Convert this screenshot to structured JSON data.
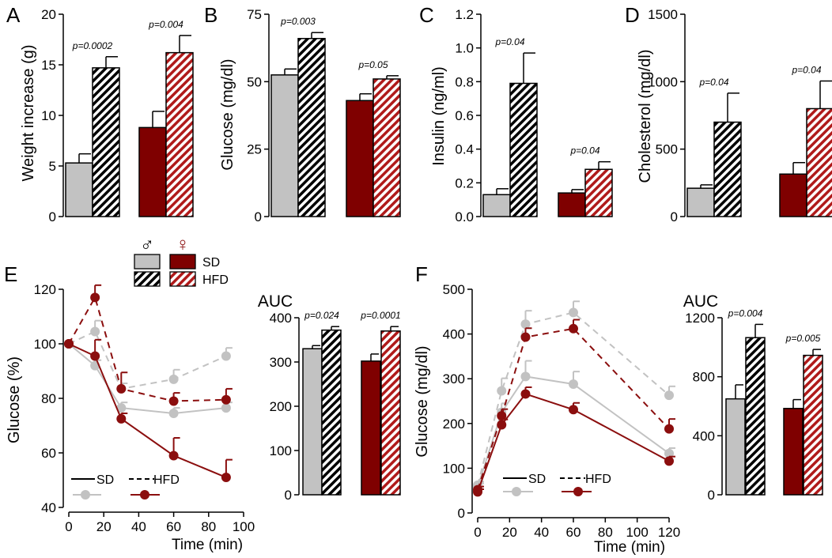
{
  "colors": {
    "sd_male": "#c2c2c2",
    "sd_female": "#7f0000",
    "hfd_male": "#000000",
    "hfd_female": "#b01a1a",
    "line_male": "#c2c2c2",
    "line_female": "#8b0e0e",
    "axis": "#000000"
  },
  "legend": {
    "male_symbol": "♂",
    "female_symbol": "♀",
    "sd_label": "SD",
    "hfd_label": "HFD"
  },
  "chart_data": [
    {
      "panel": "A",
      "type": "bar",
      "ylabel": "Weight increase (g)",
      "ylim": [
        0,
        20
      ],
      "yticks": [
        0,
        5,
        10,
        15,
        20
      ],
      "categories": [
        "male",
        "female"
      ],
      "series": [
        {
          "name": "SD",
          "values": [
            5.3,
            8.8
          ],
          "errors": [
            0.9,
            1.6
          ]
        },
        {
          "name": "HFD",
          "values": [
            14.7,
            16.2
          ],
          "errors": [
            1.1,
            1.7
          ]
        }
      ],
      "pvalues": [
        "p=0.0002",
        "p=0.004"
      ]
    },
    {
      "panel": "B",
      "type": "bar",
      "ylabel": "Glucose (mg/dl)",
      "ylim": [
        0,
        75
      ],
      "yticks": [
        0,
        25,
        50,
        75
      ],
      "categories": [
        "male",
        "female"
      ],
      "series": [
        {
          "name": "SD",
          "values": [
            52.5,
            43.0
          ],
          "errors": [
            2.2,
            2.5
          ]
        },
        {
          "name": "HFD",
          "values": [
            66.0,
            51.0
          ],
          "errors": [
            2.2,
            1.2
          ]
        }
      ],
      "pvalues": [
        "p=0.003",
        "p=0.05"
      ]
    },
    {
      "panel": "C",
      "type": "bar",
      "ylabel": "Insulin (ng/ml)",
      "ylim": [
        0,
        1.2
      ],
      "yticks": [
        "0.0",
        "0.2",
        "0.4",
        "0.6",
        "0.8",
        "1.0",
        "1.2"
      ],
      "categories": [
        "male",
        "female"
      ],
      "series": [
        {
          "name": "SD",
          "values": [
            0.13,
            0.14
          ],
          "errors": [
            0.035,
            0.02
          ]
        },
        {
          "name": "HFD",
          "values": [
            0.79,
            0.28
          ],
          "errors": [
            0.18,
            0.045
          ]
        }
      ],
      "pvalues": [
        "p=0.04",
        "p=0.04"
      ]
    },
    {
      "panel": "D",
      "type": "bar",
      "ylabel": "Cholesterol (mg/dl)",
      "ylim": [
        0,
        1500
      ],
      "yticks": [
        0,
        500,
        1000,
        1500
      ],
      "categories": [
        "male",
        "female"
      ],
      "series": [
        {
          "name": "SD",
          "values": [
            210,
            315
          ],
          "errors": [
            25,
            85
          ]
        },
        {
          "name": "HFD",
          "values": [
            700,
            800
          ],
          "errors": [
            215,
            205
          ]
        }
      ],
      "pvalues": [
        "p=0.04",
        "p=0.04"
      ]
    },
    {
      "panel": "E",
      "type": "line",
      "ylabel": "Glucose (%)",
      "xlabel": "Time (min)",
      "xlim": [
        0,
        100
      ],
      "ylim": [
        40,
        120
      ],
      "xticks": [
        0,
        20,
        40,
        60,
        80,
        100
      ],
      "yticks": [
        40,
        60,
        80,
        100,
        120
      ],
      "x": [
        0,
        15,
        30,
        60,
        90
      ],
      "series": [
        {
          "name": "male SD",
          "values": [
            100,
            92,
            76.5,
            74.5,
            76.5
          ],
          "errors": [
            0,
            2,
            2,
            2,
            2
          ]
        },
        {
          "name": "male HFD",
          "values": [
            100,
            104.5,
            83.5,
            87,
            95.5
          ],
          "errors": [
            0,
            4,
            2,
            3.5,
            3
          ]
        },
        {
          "name": "female SD",
          "values": [
            100,
            95.5,
            72.5,
            59,
            51
          ],
          "errors": [
            0,
            6,
            2,
            6.5,
            6.5
          ]
        },
        {
          "name": "female HFD",
          "values": [
            100,
            117,
            83.5,
            79,
            79.5
          ],
          "errors": [
            0,
            4.5,
            6,
            3,
            4
          ]
        }
      ],
      "legend_sd": "SD",
      "legend_hfd": "HFD"
    },
    {
      "panel": "E-AUC",
      "type": "bar",
      "title": "AUC",
      "ylim": [
        0,
        400
      ],
      "yticks": [
        0,
        100,
        200,
        300,
        400
      ],
      "categories": [
        "male",
        "female"
      ],
      "series": [
        {
          "name": "SD",
          "values": [
            330,
            302
          ],
          "errors": [
            7,
            16
          ]
        },
        {
          "name": "HFD",
          "values": [
            372,
            370
          ],
          "errors": [
            8,
            10
          ]
        }
      ],
      "pvalues": [
        "p=0.024",
        "p=0.0001"
      ]
    },
    {
      "panel": "F",
      "type": "line",
      "ylabel": "Glucose (mg/dl)",
      "xlabel": "Time (min)",
      "xlim": [
        0,
        120
      ],
      "ylim": [
        0,
        500
      ],
      "xticks": [
        0,
        20,
        40,
        60,
        80,
        100,
        120
      ],
      "yticks": [
        0,
        100,
        200,
        300,
        400,
        500
      ],
      "x": [
        0,
        15,
        30,
        60,
        120
      ],
      "series": [
        {
          "name": "male SD",
          "values": [
            58,
            225,
            305,
            288,
            133
          ],
          "errors": [
            8,
            20,
            35,
            28,
            12
          ]
        },
        {
          "name": "male HFD",
          "values": [
            62,
            273,
            422,
            448,
            263
          ],
          "errors": [
            8,
            28,
            30,
            25,
            20
          ]
        },
        {
          "name": "female SD",
          "values": [
            47,
            197,
            266,
            231,
            116
          ],
          "errors": [
            6,
            12,
            15,
            15,
            10
          ]
        },
        {
          "name": "female HFD",
          "values": [
            52,
            217,
            393,
            412,
            188
          ],
          "errors": [
            7,
            15,
            20,
            20,
            22
          ]
        }
      ],
      "legend_sd": "SD",
      "legend_hfd": "HFD"
    },
    {
      "panel": "F-AUC",
      "type": "bar",
      "title": "AUC",
      "ylim": [
        0,
        1200
      ],
      "yticks": [
        0,
        400,
        800,
        1200
      ],
      "categories": [
        "male",
        "female"
      ],
      "series": [
        {
          "name": "SD",
          "values": [
            650,
            585
          ],
          "errors": [
            95,
            60
          ]
        },
        {
          "name": "HFD",
          "values": [
            1065,
            945
          ],
          "errors": [
            90,
            40
          ]
        }
      ],
      "pvalues": [
        "p=0.004",
        "p=0.005"
      ]
    }
  ]
}
